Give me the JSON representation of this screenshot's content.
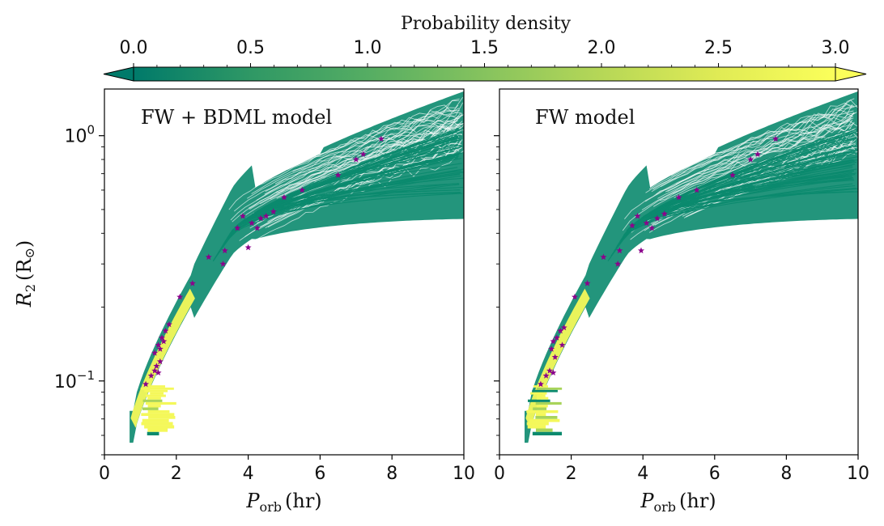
{
  "chart_data": {
    "type": "heatmap",
    "colorbar": {
      "label": "Probability density",
      "min": 0.0,
      "max": 3.0,
      "ticks": [
        "0.0",
        "0.5",
        "1.0",
        "1.5",
        "2.0",
        "2.5",
        "3.0"
      ],
      "extend": "both",
      "colormap": [
        "#007a6a",
        "#2f9865",
        "#55ad63",
        "#86c35e",
        "#b6d757",
        "#e0eb55",
        "#fbff5a"
      ]
    },
    "ylabel_main": "R",
    "ylabel_sub": "2",
    "ylabel_unit_open": "(R",
    "ylabel_unit_sym": "⊙",
    "ylabel_unit_close": ")",
    "yscale": "log",
    "ylim": [
      0.05,
      1.55
    ],
    "xlim": [
      0,
      10
    ],
    "yticks": [
      {
        "value": 1.0,
        "base": "10",
        "exp": "0"
      },
      {
        "value": 0.1,
        "base": "10",
        "exp": "−1"
      }
    ],
    "marker_color": "#8b008b",
    "track_color": "#0b8a6e",
    "panels": [
      {
        "title": "FW + BDML model",
        "xlabel_main": "P",
        "xlabel_sub": "orb",
        "xlabel_unit": "(hr)",
        "xticks": [
          "0",
          "2",
          "4",
          "6",
          "8",
          "10"
        ],
        "observed": [
          {
            "x": 1.15,
            "y": 0.097
          },
          {
            "x": 1.3,
            "y": 0.105
          },
          {
            "x": 1.4,
            "y": 0.11
          },
          {
            "x": 1.45,
            "y": 0.115
          },
          {
            "x": 1.5,
            "y": 0.108
          },
          {
            "x": 1.55,
            "y": 0.12
          },
          {
            "x": 1.4,
            "y": 0.13
          },
          {
            "x": 1.5,
            "y": 0.14
          },
          {
            "x": 1.6,
            "y": 0.15
          },
          {
            "x": 1.7,
            "y": 0.16
          },
          {
            "x": 1.8,
            "y": 0.17
          },
          {
            "x": 1.65,
            "y": 0.145
          },
          {
            "x": 1.55,
            "y": 0.135
          },
          {
            "x": 2.1,
            "y": 0.22
          },
          {
            "x": 2.45,
            "y": 0.25
          },
          {
            "x": 2.9,
            "y": 0.32
          },
          {
            "x": 3.3,
            "y": 0.3
          },
          {
            "x": 3.35,
            "y": 0.34
          },
          {
            "x": 3.7,
            "y": 0.42
          },
          {
            "x": 3.85,
            "y": 0.47
          },
          {
            "x": 4.0,
            "y": 0.35
          },
          {
            "x": 4.1,
            "y": 0.44
          },
          {
            "x": 4.25,
            "y": 0.42
          },
          {
            "x": 4.35,
            "y": 0.46
          },
          {
            "x": 4.5,
            "y": 0.47
          },
          {
            "x": 4.7,
            "y": 0.49
          },
          {
            "x": 5.0,
            "y": 0.56
          },
          {
            "x": 5.5,
            "y": 0.6
          },
          {
            "x": 6.5,
            "y": 0.69
          },
          {
            "x": 7.0,
            "y": 0.8
          },
          {
            "x": 7.2,
            "y": 0.84
          },
          {
            "x": 7.7,
            "y": 0.97
          }
        ]
      },
      {
        "title": "FW model",
        "xlabel_main": "P",
        "xlabel_sub": "orb",
        "xlabel_unit": "(hr)",
        "xticks": [
          "0",
          "2",
          "4",
          "6",
          "8",
          "10"
        ],
        "observed": [
          {
            "x": 1.15,
            "y": 0.097
          },
          {
            "x": 1.3,
            "y": 0.105
          },
          {
            "x": 1.4,
            "y": 0.11
          },
          {
            "x": 1.5,
            "y": 0.108
          },
          {
            "x": 1.55,
            "y": 0.125
          },
          {
            "x": 1.45,
            "y": 0.135
          },
          {
            "x": 1.5,
            "y": 0.145
          },
          {
            "x": 1.6,
            "y": 0.15
          },
          {
            "x": 1.7,
            "y": 0.16
          },
          {
            "x": 1.8,
            "y": 0.165
          },
          {
            "x": 1.75,
            "y": 0.14
          },
          {
            "x": 2.1,
            "y": 0.22
          },
          {
            "x": 2.45,
            "y": 0.25
          },
          {
            "x": 2.9,
            "y": 0.32
          },
          {
            "x": 3.3,
            "y": 0.3
          },
          {
            "x": 3.35,
            "y": 0.34
          },
          {
            "x": 3.7,
            "y": 0.43
          },
          {
            "x": 3.85,
            "y": 0.47
          },
          {
            "x": 3.95,
            "y": 0.34
          },
          {
            "x": 4.1,
            "y": 0.44
          },
          {
            "x": 4.25,
            "y": 0.42
          },
          {
            "x": 4.4,
            "y": 0.46
          },
          {
            "x": 4.6,
            "y": 0.48
          },
          {
            "x": 5.0,
            "y": 0.56
          },
          {
            "x": 5.5,
            "y": 0.6
          },
          {
            "x": 6.5,
            "y": 0.69
          },
          {
            "x": 7.0,
            "y": 0.8
          },
          {
            "x": 7.2,
            "y": 0.84
          },
          {
            "x": 7.7,
            "y": 0.97
          }
        ]
      }
    ]
  }
}
